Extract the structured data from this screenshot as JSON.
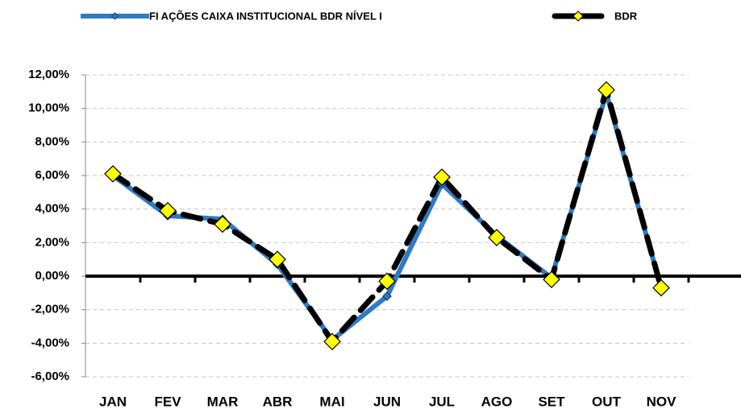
{
  "chart_data": {
    "type": "line",
    "categories": [
      "JAN",
      "FEV",
      "MAR",
      "ABR",
      "MAI",
      "JUN",
      "JUL",
      "AGO",
      "SET",
      "OUT",
      "NOV"
    ],
    "series": [
      {
        "name": "FI AÇÕES CAIXA INSTITUCIONAL BDR NÍVEL I",
        "color": "#2e7bc4",
        "values": [
          6.0,
          3.6,
          3.4,
          0.7,
          -3.8,
          -1.2,
          5.5,
          2.4,
          -0.1,
          10.9,
          -0.7
        ]
      },
      {
        "name": "BDR",
        "color": "#000000",
        "values": [
          6.1,
          3.9,
          3.1,
          1.0,
          -3.9,
          -0.3,
          5.9,
          2.3,
          -0.2,
          11.1,
          -0.7
        ]
      }
    ],
    "ylim": [
      -6,
      12
    ],
    "yticks": [
      {
        "value": -6,
        "label": "-6,00%"
      },
      {
        "value": -4,
        "label": "-4,00%"
      },
      {
        "value": -2,
        "label": "-2,00%"
      },
      {
        "value": 0,
        "label": "0,00%"
      },
      {
        "value": 2,
        "label": "2,00%"
      },
      {
        "value": 4,
        "label": "4,00%"
      },
      {
        "value": 6,
        "label": "6,00%"
      },
      {
        "value": 8,
        "label": "8,00%"
      },
      {
        "value": 10,
        "label": "10,00%"
      },
      {
        "value": 12,
        "label": "12,00%"
      }
    ],
    "grid": true
  }
}
